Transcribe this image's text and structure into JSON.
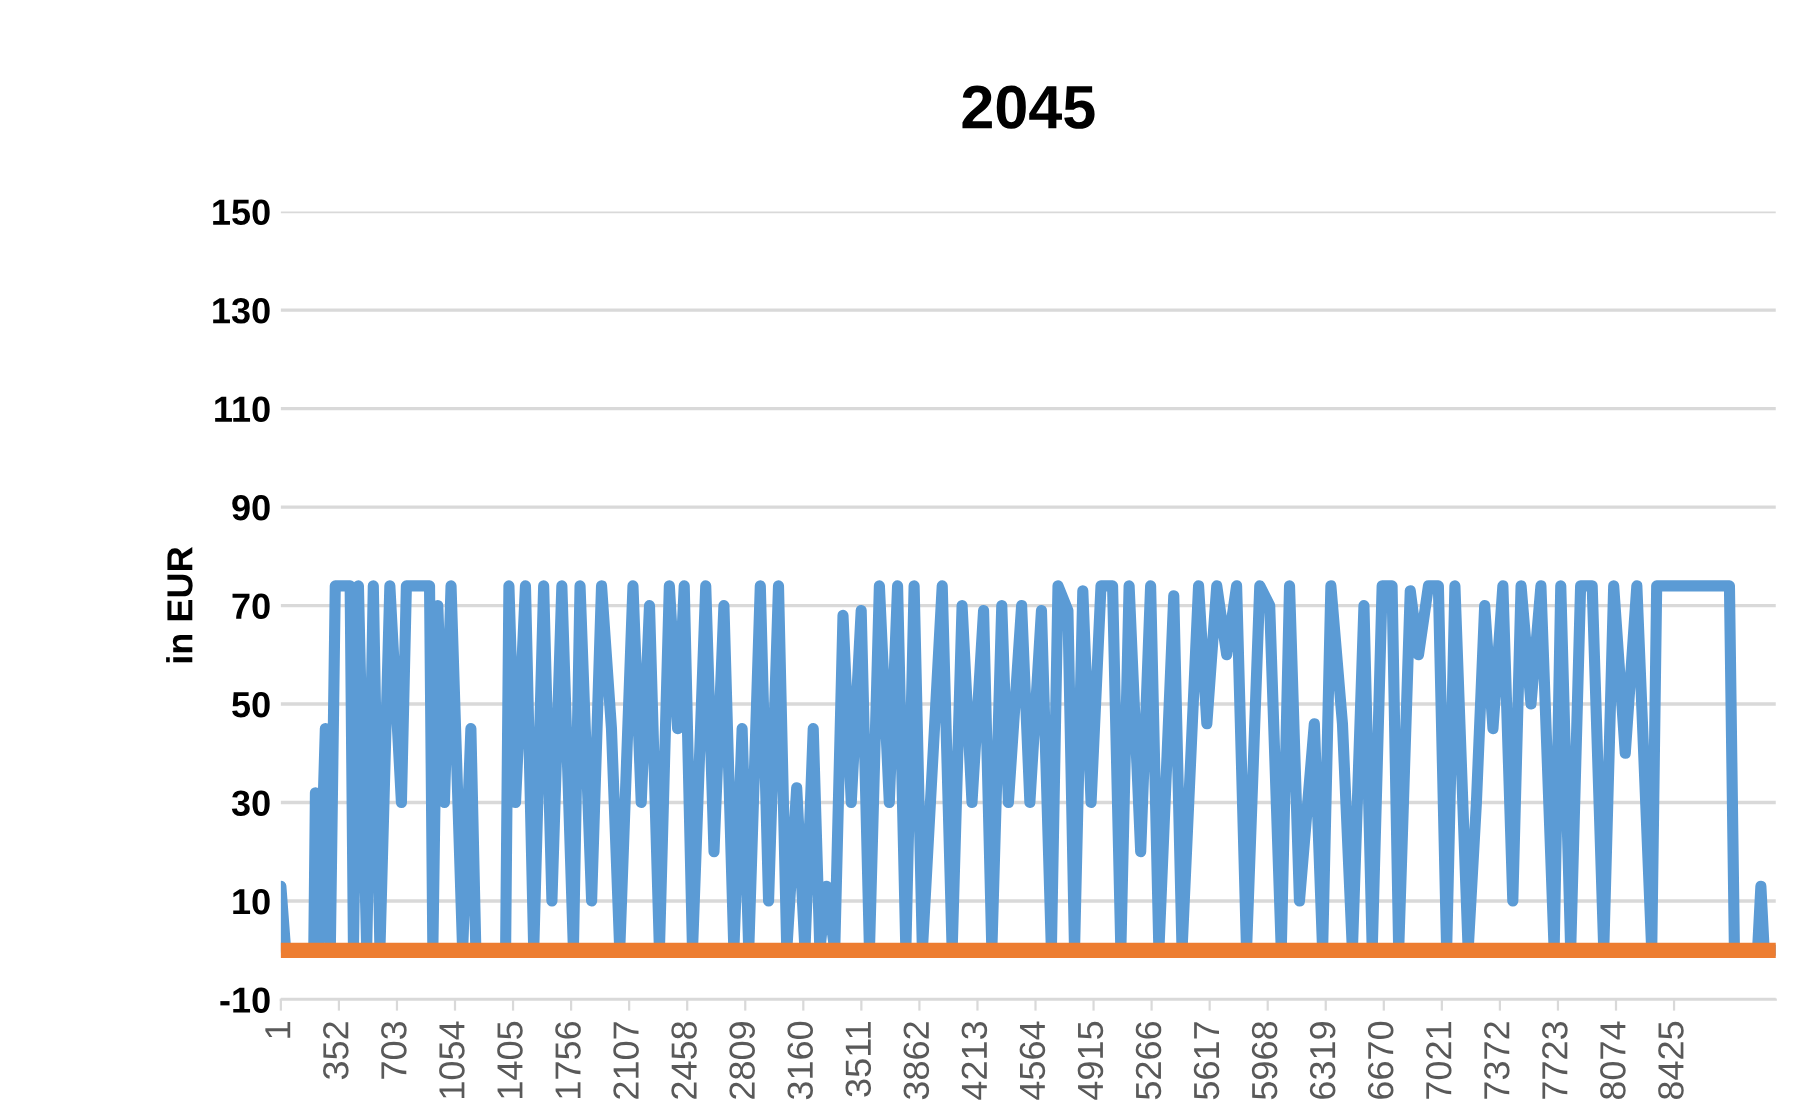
{
  "chart_data": {
    "type": "line",
    "title": "2045",
    "ylabel": "in EUR",
    "series": [
      {
        "color": "#5b9bd5",
        "x": [
          1,
          30,
          200,
          210,
          230,
          270,
          300,
          330,
          420,
          440,
          470,
          520,
          560,
          600,
          660,
          730,
          760,
          900,
          920,
          950,
          990,
          1030,
          1100,
          1150,
          1180,
          1360,
          1380,
          1420,
          1480,
          1530,
          1590,
          1640,
          1700,
          1770,
          1810,
          1880,
          1940,
          2000,
          2050,
          2130,
          2180,
          2230,
          2290,
          2350,
          2400,
          2440,
          2490,
          2570,
          2620,
          2680,
          2740,
          2790,
          2830,
          2900,
          2950,
          3010,
          3060,
          3120,
          3170,
          3220,
          3260,
          3300,
          3350,
          3400,
          3450,
          3510,
          3560,
          3620,
          3680,
          3730,
          3780,
          3830,
          3880,
          4000,
          4060,
          4120,
          4180,
          4250,
          4300,
          4360,
          4400,
          4480,
          4530,
          4600,
          4660,
          4700,
          4760,
          4800,
          4850,
          4900,
          4960,
          5030,
          5080,
          5130,
          5200,
          5260,
          5310,
          5400,
          5450,
          5550,
          5600,
          5660,
          5720,
          5780,
          5840,
          5920,
          5980,
          6050,
          6100,
          6160,
          6250,
          6300,
          6350,
          6420,
          6480,
          6550,
          6600,
          6660,
          6720,
          6760,
          6830,
          6880,
          6940,
          7000,
          7050,
          7100,
          7180,
          7230,
          7280,
          7330,
          7390,
          7450,
          7500,
          7560,
          7620,
          7700,
          7740,
          7800,
          7860,
          7930,
          8000,
          8060,
          8130,
          8200,
          8290,
          8320,
          8500,
          8760,
          8790,
          8930,
          8950,
          8970,
          9040
        ],
        "values": [
          13,
          0,
          0,
          32,
          0,
          45,
          0,
          74,
          74,
          0,
          74,
          0,
          74,
          0,
          74,
          30,
          74,
          74,
          0,
          70,
          30,
          74,
          0,
          45,
          0,
          0,
          74,
          30,
          74,
          0,
          74,
          10,
          74,
          0,
          74,
          10,
          74,
          45,
          0,
          74,
          30,
          70,
          0,
          74,
          45,
          74,
          0,
          74,
          20,
          70,
          0,
          45,
          0,
          74,
          10,
          74,
          0,
          33,
          0,
          45,
          0,
          13,
          0,
          68,
          30,
          69,
          0,
          74,
          30,
          74,
          0,
          74,
          0,
          74,
          0,
          70,
          30,
          69,
          0,
          70,
          30,
          70,
          30,
          69,
          0,
          74,
          69,
          0,
          73,
          30,
          74,
          74,
          0,
          74,
          20,
          74,
          0,
          72,
          0,
          74,
          46,
          74,
          60,
          74,
          0,
          74,
          70,
          0,
          74,
          10,
          46,
          0,
          74,
          46,
          0,
          70,
          0,
          74,
          74,
          0,
          73,
          60,
          74,
          74,
          0,
          74,
          0,
          30,
          70,
          45,
          74,
          10,
          74,
          50,
          74,
          0,
          74,
          0,
          74,
          74,
          0,
          74,
          40,
          74,
          0,
          74,
          74,
          74,
          0,
          0,
          13,
          0,
          0
        ]
      },
      {
        "color": "#ed7d31",
        "x": [
          1,
          9040
        ],
        "values": [
          0,
          0
        ]
      }
    ],
    "xlim": [
      1,
      9040
    ],
    "xticks": [
      1,
      352,
      703,
      1054,
      1405,
      1756,
      2107,
      2458,
      2809,
      3160,
      3511,
      3862,
      4213,
      4564,
      4915,
      5266,
      5617,
      5968,
      6319,
      6670,
      7021,
      7372,
      7723,
      8074,
      8425
    ],
    "ylim": [
      -10,
      150
    ],
    "yticks": [
      -10,
      10,
      30,
      50,
      70,
      90,
      110,
      130,
      150
    ],
    "grid": "y",
    "legend": false
  }
}
